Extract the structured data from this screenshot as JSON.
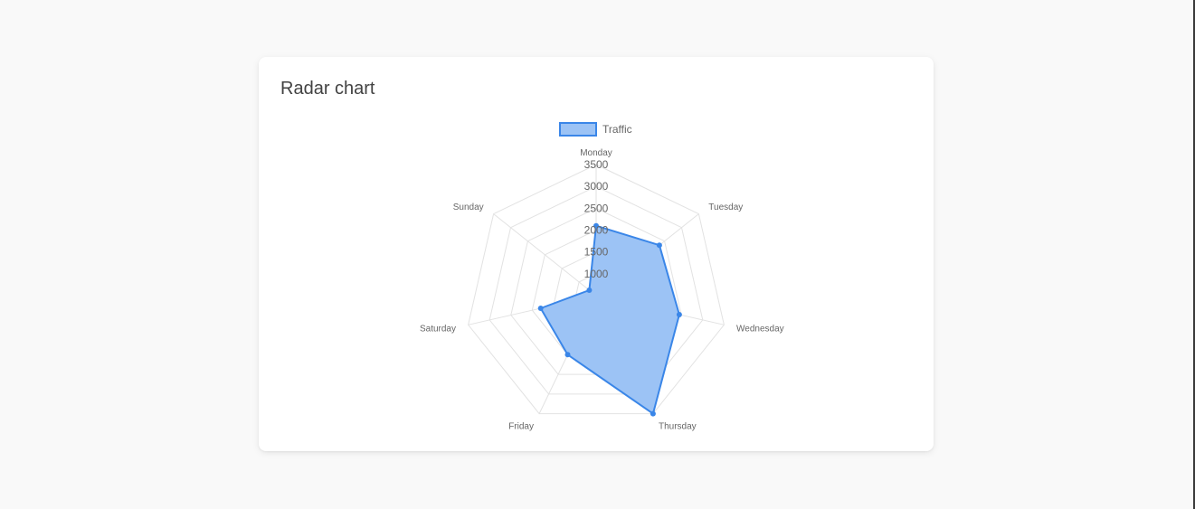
{
  "card": {
    "title": "Radar chart"
  },
  "chart_data": {
    "type": "radar",
    "title": "Radar chart",
    "labels": [
      "Monday",
      "Tuesday",
      "Wednesday",
      "Thursday",
      "Friday",
      "Saturday",
      "Sunday"
    ],
    "series": [
      {
        "name": "Traffic",
        "values": [
          2100,
          2350,
          2450,
          3500,
          2000,
          1800,
          700
        ]
      }
    ],
    "ticks": [
      1000,
      1500,
      2000,
      2500,
      3000,
      3500
    ],
    "rlim": [
      500,
      3500
    ],
    "grid": true,
    "legend": "top",
    "colors": {
      "line": "#3a86e8",
      "fill": "#9cc3f5",
      "grid": "#e2e2e2"
    }
  }
}
